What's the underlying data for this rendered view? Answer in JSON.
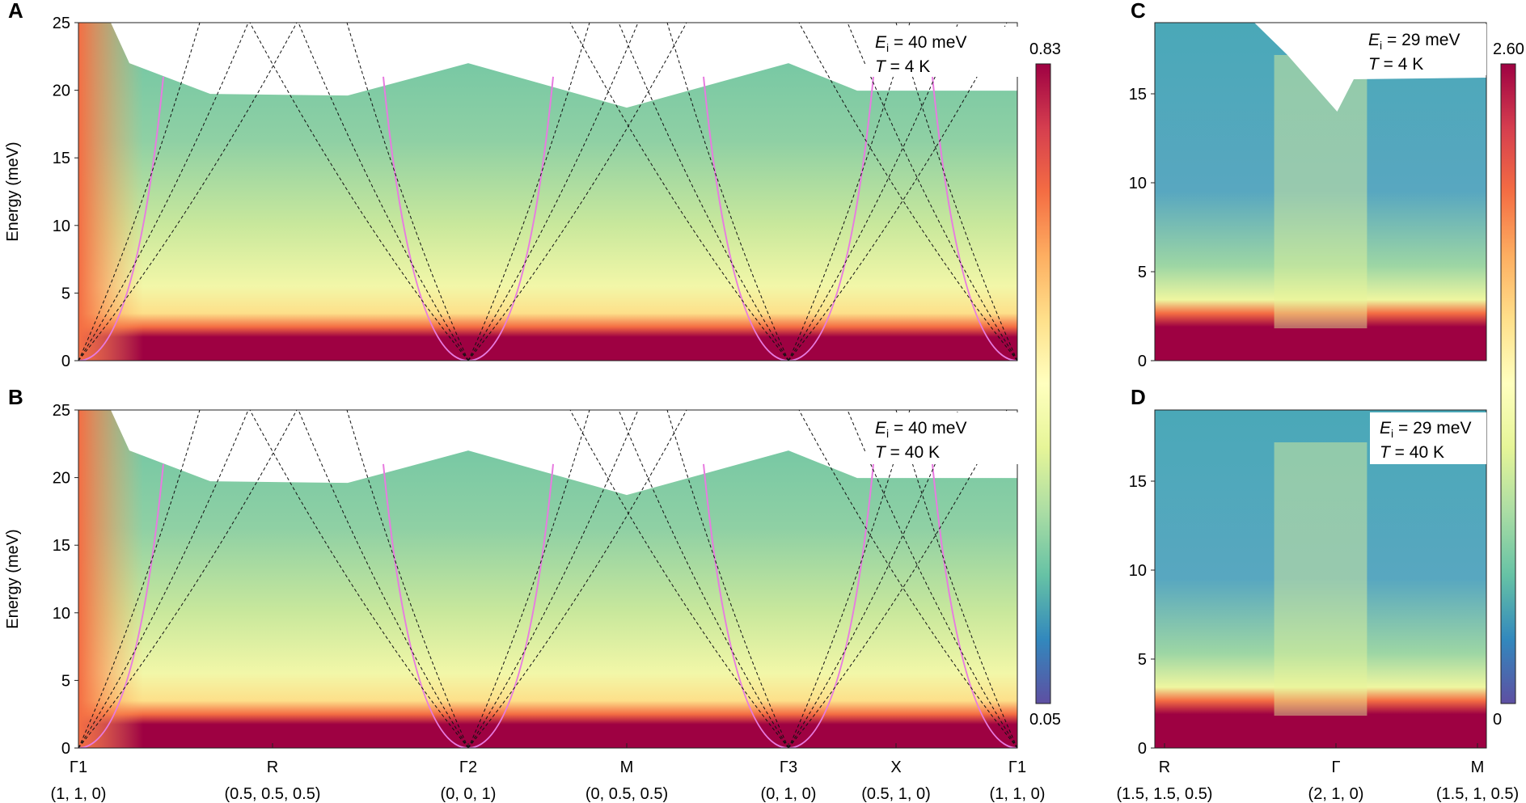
{
  "figure": {
    "panel_labels": [
      "A",
      "B",
      "C",
      "D"
    ],
    "y_axis_label": "Energy (meV)"
  },
  "chart_data": [
    {
      "type": "heatmap",
      "panel": "A",
      "ylabel": "Energy (meV)",
      "ylim": [
        0,
        25
      ],
      "yticks": [
        0,
        5,
        10,
        15,
        20,
        25
      ],
      "colormap": "Spectral (reversed)",
      "colorbar": {
        "min": 0.05,
        "max": 0.83,
        "min_label": "0.05",
        "max_label": "0.83"
      },
      "annotation": {
        "ei_symbol": "E",
        "ei_sub": "i",
        "ei_value": " = 40 meV",
        "t_symbol": "T",
        "t_value": " = 4 K"
      },
      "high_symmetry_points": [
        "Γ1",
        "R",
        "Γ2",
        "M",
        "Γ3",
        "X",
        "Γ1"
      ],
      "hkl_labels": [
        "(1, 1, 0)",
        "(0.5, 0.5, 0.5)",
        "(0, 0, 1)",
        "(0, 0.5, 0.5)",
        "(0, 1, 0)",
        "(0.5, 1, 0)",
        "(1, 1, 0)"
      ],
      "dispersion_model_colors": {
        "dashed": "#111111",
        "magenta": "#e77be0"
      }
    },
    {
      "type": "heatmap",
      "panel": "B",
      "ylabel": "Energy (meV)",
      "ylim": [
        0,
        25
      ],
      "yticks": [
        0,
        5,
        10,
        15,
        20,
        25
      ],
      "colormap": "Spectral (reversed)",
      "colorbar": {
        "min": 0.05,
        "max": 0.83,
        "min_label": "0.05",
        "max_label": "0.83"
      },
      "annotation": {
        "ei_symbol": "E",
        "ei_sub": "i",
        "ei_value": " = 40 meV",
        "t_symbol": "T",
        "t_value": " = 40 K"
      },
      "high_symmetry_points": [
        "Γ1",
        "R",
        "Γ2",
        "M",
        "Γ3",
        "X",
        "Γ1"
      ],
      "hkl_labels": [
        "(1, 1, 0)",
        "(0.5, 0.5, 0.5)",
        "(0, 0, 1)",
        "(0, 0.5, 0.5)",
        "(0, 1, 0)",
        "(0.5, 1, 0)",
        "(1, 1, 0)"
      ]
    },
    {
      "type": "heatmap",
      "panel": "C",
      "ylim": [
        0,
        19
      ],
      "yticks": [
        0,
        5,
        10,
        15
      ],
      "colorbar": {
        "min": 0,
        "max": 2.6,
        "min_label": "0",
        "max_label": "2.60"
      },
      "annotation": {
        "ei_symbol": "E",
        "ei_sub": "i",
        "ei_value": " = 29 meV",
        "t_symbol": "T",
        "t_value": " = 4 K"
      },
      "high_symmetry_points": [
        "R",
        "Γ",
        "M"
      ],
      "hkl_labels": [
        "(1.5, 1.5, 0.5)",
        "(2, 1, 0)",
        "(1.5, 1, 0.5)"
      ]
    },
    {
      "type": "heatmap",
      "panel": "D",
      "ylim": [
        0,
        19
      ],
      "yticks": [
        0,
        5,
        10,
        15
      ],
      "colorbar": {
        "min": 0,
        "max": 2.6,
        "min_label": "0",
        "max_label": "2.60"
      },
      "annotation": {
        "ei_symbol": "E",
        "ei_sub": "i",
        "ei_value": " = 29 meV",
        "t_symbol": "T",
        "t_value": " = 40 K"
      },
      "high_symmetry_points": [
        "R",
        "Γ",
        "M"
      ],
      "hkl_labels": [
        "(1.5, 1.5, 0.5)",
        "(2, 1, 0)",
        "(1.5, 1, 0.5)"
      ]
    }
  ]
}
